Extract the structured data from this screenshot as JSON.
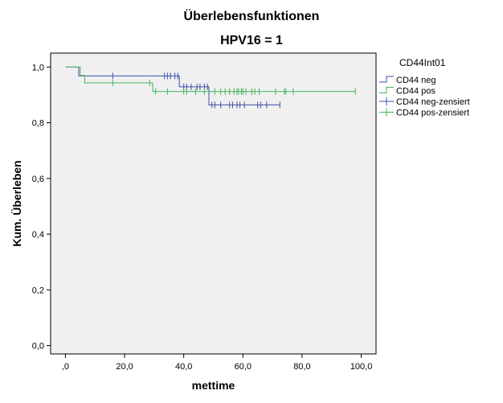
{
  "chart_data": {
    "type": "line",
    "title": "Überlebensfunktionen",
    "subtitle": "HPV16 = 1",
    "xlabel": "mettime",
    "ylabel": "Kum. Überleben",
    "xlim": [
      -5,
      105
    ],
    "ylim": [
      -0.03,
      1.05
    ],
    "x_ticks": [
      0,
      20,
      40,
      60,
      80,
      100
    ],
    "x_tick_labels": [
      ",0",
      "20,0",
      "40,0",
      "60,0",
      "80,0",
      "100,0"
    ],
    "y_ticks": [
      0,
      0.2,
      0.4,
      0.6,
      0.8,
      1.0
    ],
    "y_tick_labels": [
      "0,0",
      "0,2",
      "0,4",
      "0,6",
      "0,8",
      "1,0"
    ],
    "legend_title": "CD44Int01",
    "legend_position": "right",
    "legend": [
      "CD44 neg",
      "CD44 pos",
      "CD44 neg-zensiert",
      "CD44 pos-zensiert"
    ],
    "series": [
      {
        "name": "CD44 neg",
        "color": "#3c4fa8",
        "steps": [
          [
            0,
            1.0
          ],
          [
            4.5,
            0.968
          ],
          [
            38.5,
            0.929
          ],
          [
            48.5,
            0.864
          ],
          [
            72.5,
            0.864
          ]
        ],
        "censored_label": "CD44 neg-zensiert",
        "censored": [
          [
            16,
            0.968
          ],
          [
            33.5,
            0.968
          ],
          [
            34.5,
            0.968
          ],
          [
            35.5,
            0.968
          ],
          [
            37,
            0.968
          ],
          [
            38,
            0.968
          ],
          [
            40,
            0.929
          ],
          [
            41,
            0.929
          ],
          [
            42.5,
            0.929
          ],
          [
            44.5,
            0.929
          ],
          [
            45.5,
            0.929
          ],
          [
            47,
            0.929
          ],
          [
            48,
            0.929
          ],
          [
            49.5,
            0.864
          ],
          [
            50.5,
            0.864
          ],
          [
            52.5,
            0.864
          ],
          [
            55.5,
            0.864
          ],
          [
            56.5,
            0.864
          ],
          [
            58,
            0.864
          ],
          [
            59,
            0.864
          ],
          [
            60.5,
            0.864
          ],
          [
            65,
            0.864
          ],
          [
            66,
            0.864
          ],
          [
            68,
            0.864
          ],
          [
            72.5,
            0.864
          ]
        ]
      },
      {
        "name": "CD44 pos",
        "color": "#43b35a",
        "steps": [
          [
            0,
            1.0
          ],
          [
            5,
            0.97
          ],
          [
            6.5,
            0.943
          ],
          [
            29.5,
            0.912
          ],
          [
            98,
            0.912
          ]
        ],
        "censored_label": "CD44 pos-zensiert",
        "censored": [
          [
            16,
            0.943
          ],
          [
            28.5,
            0.943
          ],
          [
            30.5,
            0.912
          ],
          [
            34.5,
            0.912
          ],
          [
            40,
            0.912
          ],
          [
            41,
            0.912
          ],
          [
            44,
            0.912
          ],
          [
            47,
            0.912
          ],
          [
            50.5,
            0.912
          ],
          [
            52.5,
            0.912
          ],
          [
            54,
            0.912
          ],
          [
            55.5,
            0.912
          ],
          [
            57,
            0.912
          ],
          [
            58,
            0.912
          ],
          [
            58.5,
            0.912
          ],
          [
            59.5,
            0.912
          ],
          [
            60,
            0.912
          ],
          [
            61,
            0.912
          ],
          [
            63,
            0.912
          ],
          [
            64,
            0.912
          ],
          [
            65.5,
            0.912
          ],
          [
            71,
            0.912
          ],
          [
            74,
            0.912
          ],
          [
            74.5,
            0.912
          ],
          [
            77,
            0.912
          ],
          [
            98,
            0.912
          ]
        ]
      }
    ],
    "background_color": "#f0f0f0",
    "grid": false
  }
}
